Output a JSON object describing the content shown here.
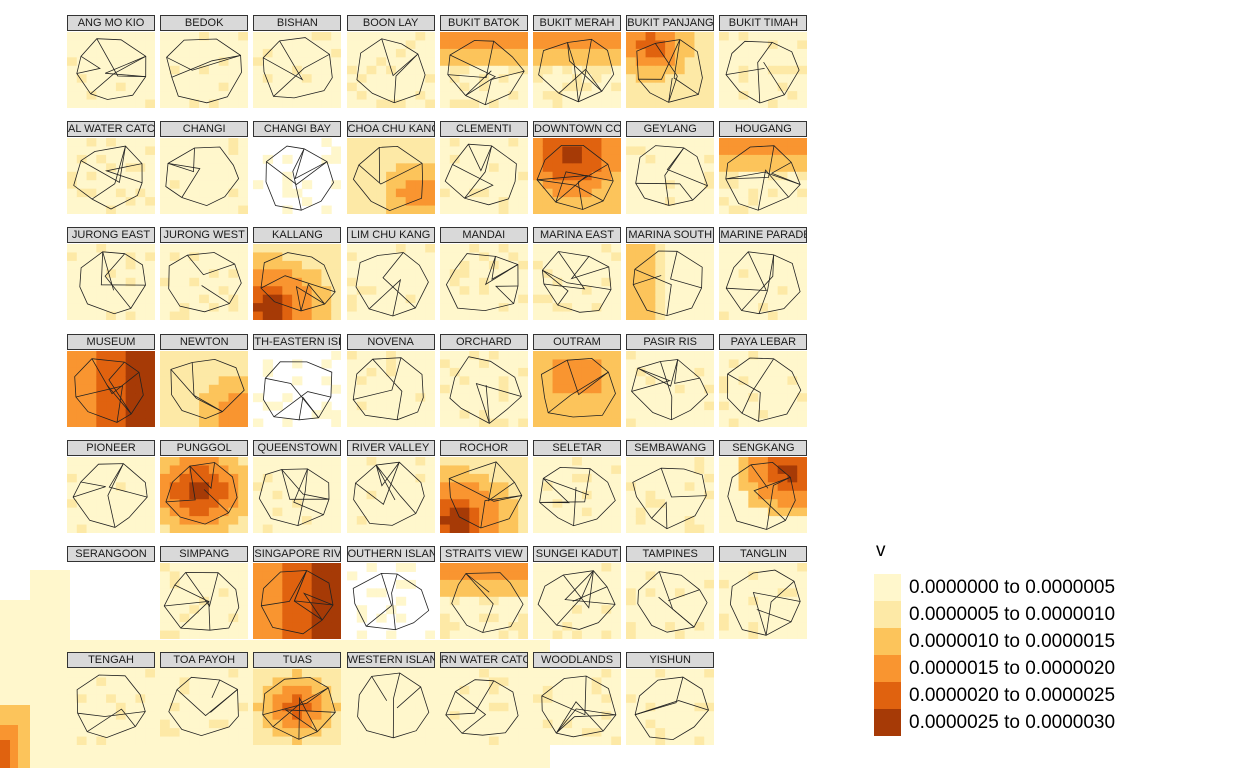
{
  "facets": [
    {
      "name": "ANG MO KIO",
      "fill": "light"
    },
    {
      "name": "BEDOK",
      "fill": "light"
    },
    {
      "name": "BISHAN",
      "fill": "light"
    },
    {
      "name": "BOON LAY",
      "fill": "light"
    },
    {
      "name": "BUKIT BATOK",
      "fill": "orange-top"
    },
    {
      "name": "BUKIT MERAH",
      "fill": "orange-top"
    },
    {
      "name": "BUKIT PANJANG",
      "fill": "orange-topleft"
    },
    {
      "name": "BUKIT TIMAH",
      "fill": "light"
    },
    {
      "name": "AL WATER CATC",
      "fill": "light"
    },
    {
      "name": "CHANGI",
      "fill": "light"
    },
    {
      "name": "CHANGI BAY",
      "fill": "white"
    },
    {
      "name": "CHOA CHU KANG",
      "fill": "orange-bottomright"
    },
    {
      "name": "CLEMENTI",
      "fill": "light"
    },
    {
      "name": "DOWNTOWN CORE",
      "fill": "dark"
    },
    {
      "name": "GEYLANG",
      "fill": "light"
    },
    {
      "name": "HOUGANG",
      "fill": "orange-top"
    },
    {
      "name": "JURONG EAST",
      "fill": "light"
    },
    {
      "name": "JURONG WEST",
      "fill": "light"
    },
    {
      "name": "KALLANG",
      "fill": "dark-bottomleft"
    },
    {
      "name": "LIM CHU KANG",
      "fill": "light"
    },
    {
      "name": "MANDAI",
      "fill": "light"
    },
    {
      "name": "MARINA EAST",
      "fill": "light"
    },
    {
      "name": "MARINA SOUTH",
      "fill": "orange-left"
    },
    {
      "name": "MARINE PARADE",
      "fill": "light"
    },
    {
      "name": "MUSEUM",
      "fill": "dark-right"
    },
    {
      "name": "NEWTON",
      "fill": "orange-right"
    },
    {
      "name": "TH-EASTERN ISLA",
      "fill": "white"
    },
    {
      "name": "NOVENA",
      "fill": "light"
    },
    {
      "name": "ORCHARD",
      "fill": "light"
    },
    {
      "name": "OUTRAM",
      "fill": "orange"
    },
    {
      "name": "PASIR RIS",
      "fill": "light"
    },
    {
      "name": "PAYA LEBAR",
      "fill": "light"
    },
    {
      "name": "PIONEER",
      "fill": "light"
    },
    {
      "name": "PUNGGOL",
      "fill": "dark-center"
    },
    {
      "name": "QUEENSTOWN",
      "fill": "light"
    },
    {
      "name": "RIVER VALLEY",
      "fill": "light"
    },
    {
      "name": "ROCHOR",
      "fill": "dark-bottomleft"
    },
    {
      "name": "SELETAR",
      "fill": "light"
    },
    {
      "name": "SEMBAWANG",
      "fill": "light"
    },
    {
      "name": "SENGKANG",
      "fill": "dark-topright"
    },
    {
      "name": "SERANGOON",
      "fill": "none"
    },
    {
      "name": "SIMPANG",
      "fill": "light"
    },
    {
      "name": "SINGAPORE RIVER",
      "fill": "dark-right"
    },
    {
      "name": "OUTHERN ISLAND",
      "fill": "white"
    },
    {
      "name": "STRAITS VIEW",
      "fill": "orange-top"
    },
    {
      "name": "SUNGEI KADUT",
      "fill": "light"
    },
    {
      "name": "TAMPINES",
      "fill": "light"
    },
    {
      "name": "TANGLIN",
      "fill": "light"
    },
    {
      "name": "TENGAH",
      "fill": "light"
    },
    {
      "name": "TOA PAYOH",
      "fill": "light"
    },
    {
      "name": "TUAS",
      "fill": "orange-center"
    },
    {
      "name": "WESTERN ISLANDS",
      "fill": "white"
    },
    {
      "name": "RN WATER CATC",
      "fill": "light"
    },
    {
      "name": "WOODLANDS",
      "fill": "light"
    },
    {
      "name": "YISHUN",
      "fill": "light"
    }
  ],
  "legend": {
    "title": "v",
    "items": [
      {
        "label": "0.0000000 to 0.0000005",
        "color": "#fff7cc"
      },
      {
        "label": "0.0000005 to 0.0000010",
        "color": "#fde9a6"
      },
      {
        "label": "0.0000010 to 0.0000015",
        "color": "#fcc45b"
      },
      {
        "label": "0.0000015 to 0.0000020",
        "color": "#f99530"
      },
      {
        "label": "0.0000020 to 0.0000025",
        "color": "#e0620f"
      },
      {
        "label": "0.0000025 to 0.0000030",
        "color": "#a63a06"
      }
    ]
  }
}
